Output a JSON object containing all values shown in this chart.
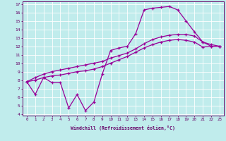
{
  "xlabel": "Windchill (Refroidissement éolien,°C)",
  "bg_color": "#c0ecec",
  "line_color": "#990099",
  "grid_color": "#ffffff",
  "xmin": 0,
  "xmax": 23,
  "ymin": 4,
  "ymax": 17,
  "line1_x": [
    0,
    1,
    2,
    3,
    4,
    5,
    6,
    7,
    8,
    9,
    10,
    11,
    12,
    13,
    14,
    15,
    16,
    17,
    18,
    19,
    20,
    21,
    22,
    23
  ],
  "line1_y": [
    7.8,
    6.3,
    8.3,
    7.7,
    7.7,
    4.7,
    6.3,
    4.4,
    5.4,
    8.7,
    11.5,
    11.8,
    12.0,
    13.5,
    16.3,
    16.5,
    16.6,
    16.7,
    16.3,
    15.0,
    13.7,
    12.5,
    12.0,
    12.0
  ],
  "line2_x": [
    0,
    1,
    2,
    3,
    4,
    5,
    6,
    7,
    8,
    9,
    10,
    11,
    12,
    13,
    14,
    15,
    16,
    17,
    18,
    19,
    20,
    21,
    22,
    23
  ],
  "line2_y": [
    7.8,
    8.0,
    8.3,
    8.5,
    8.6,
    8.8,
    9.0,
    9.1,
    9.3,
    9.6,
    10.0,
    10.4,
    10.8,
    11.3,
    11.8,
    12.2,
    12.5,
    12.7,
    12.8,
    12.7,
    12.5,
    11.9,
    12.0,
    12.0
  ],
  "line3_x": [
    0,
    1,
    2,
    3,
    4,
    5,
    6,
    7,
    8,
    9,
    10,
    11,
    12,
    13,
    14,
    15,
    16,
    17,
    18,
    19,
    20,
    21,
    22,
    23
  ],
  "line3_y": [
    7.8,
    8.3,
    8.7,
    9.0,
    9.2,
    9.4,
    9.6,
    9.8,
    10.0,
    10.2,
    10.6,
    10.9,
    11.2,
    11.7,
    12.3,
    12.8,
    13.1,
    13.3,
    13.4,
    13.4,
    13.2,
    12.5,
    12.2,
    12.0
  ]
}
